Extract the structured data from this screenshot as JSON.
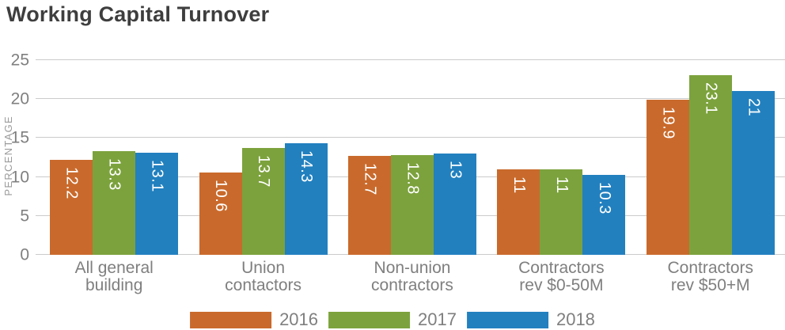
{
  "chart": {
    "title": "Working Capital Turnover",
    "ylabel": "PERCENTAGE"
  },
  "chart_data": {
    "type": "bar",
    "title": "Working Capital Turnover",
    "xlabel": "",
    "ylabel": "PERCENTAGE",
    "categories": [
      "All general\nbuilding",
      "Union\ncontactors",
      "Non-union\ncontractors",
      "Contractors\nrev $0-50M",
      "Contractors\nrev $50+M"
    ],
    "series": [
      {
        "name": "2016",
        "color": "#c96a2c",
        "values": [
          12.2,
          10.6,
          12.7,
          11,
          19.9
        ]
      },
      {
        "name": "2017",
        "color": "#7ca23d",
        "values": [
          13.3,
          13.7,
          12.8,
          11,
          23.1
        ]
      },
      {
        "name": "2018",
        "color": "#2280bf",
        "values": [
          13.1,
          14.3,
          13,
          10.3,
          21
        ]
      }
    ],
    "ylim": [
      0,
      25
    ],
    "yticks": [
      0,
      5,
      10,
      15,
      20,
      25
    ],
    "grid": true,
    "legend_position": "bottom",
    "value_labels": "inside-top-rotated-white",
    "colors": {
      "title_text": "#3e3e3e",
      "axis_text": "#7f7f7f",
      "gridline": "#cbcbcb"
    }
  }
}
